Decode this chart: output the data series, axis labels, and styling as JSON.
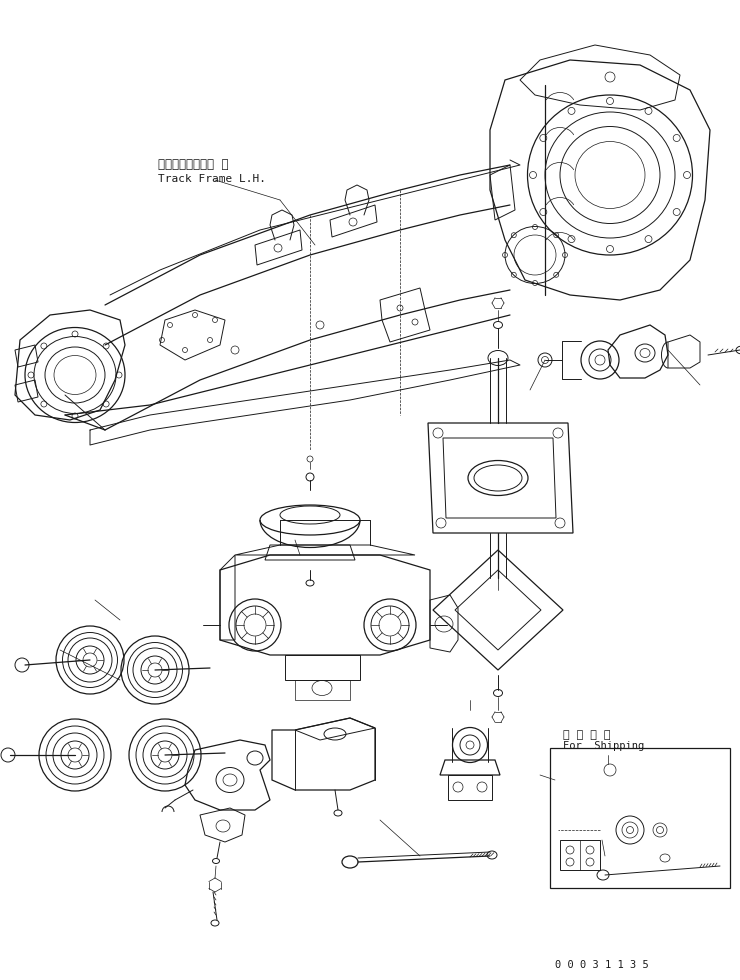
{
  "background_color": "#ffffff",
  "line_color": "#1a1a1a",
  "text_color": "#1a1a1a",
  "part_number": "0 0 0 3 1 1 3 5",
  "label_track_frame_ja": "トラックフレーム  左",
  "label_track_frame_en": "Track Frame L.H.",
  "label_shipping_ja": "運  搐  部  品",
  "label_shipping_en": "For  Shipping",
  "lw_main": 0.9,
  "lw_detail": 0.7,
  "lw_thin": 0.5
}
